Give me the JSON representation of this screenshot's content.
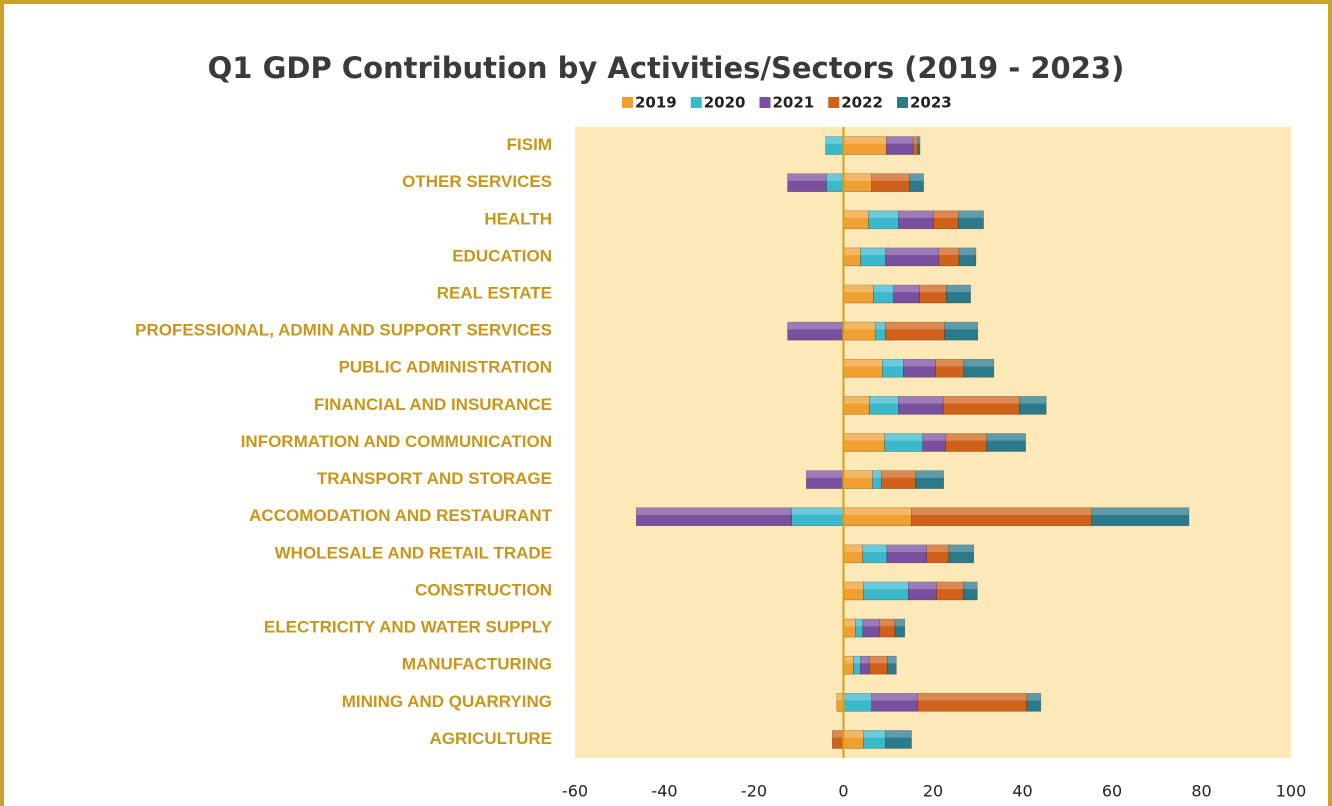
{
  "chart_data": {
    "type": "stacked_bar_horizontal",
    "title": "Q1 GDP Contribution by Activities/Sectors (2019 - 2023)",
    "categories": [
      "FISIM",
      "OTHER SERVICES",
      "HEALTH",
      "EDUCATION",
      "REAL ESTATE",
      "PROFESSIONAL, ADMIN AND SUPPORT SERVICES",
      "PUBLIC ADMINISTRATION",
      "FINANCIAL AND INSURANCE",
      "INFORMATION AND COMMUNICATION",
      "TRANSPORT AND STORAGE",
      "ACCOMODATION AND RESTAURANT",
      "WHOLESALE AND RETAIL TRADE",
      "CONSTRUCTION",
      "ELECTRICITY AND WATER SUPPLY",
      "MANUFACTURING",
      "MINING AND QUARRYING",
      "AGRICULTURE"
    ],
    "series": [
      {
        "name": "2019",
        "color": "#f0a030",
        "values": [
          9.6,
          6.3,
          5.6,
          3.8,
          6.7,
          7.2,
          8.7,
          5.8,
          9.2,
          6.5,
          15.2,
          4.3,
          4.5,
          2.7,
          2.2,
          -1.5,
          4.5
        ]
      },
      {
        "name": "2020",
        "color": "#3ab8cc",
        "values": [
          -4,
          -3.8,
          6.7,
          5.6,
          4.5,
          2.2,
          4.7,
          6.5,
          8.5,
          2,
          -11.6,
          5.4,
          10,
          1.6,
          1.6,
          6.3,
          4.9
        ]
      },
      {
        "name": "2021",
        "color": "#7a4fa0",
        "values": [
          6,
          -8.7,
          7.8,
          11.9,
          5.8,
          -12.5,
          7.2,
          10,
          5.1,
          -8.3,
          -34.7,
          8.9,
          6.3,
          3.8,
          2,
          10.3,
          0
        ]
      },
      {
        "name": "2022",
        "color": "#d0601a",
        "values": [
          1,
          8.5,
          5.6,
          4.5,
          6,
          13.2,
          6.3,
          17,
          9.2,
          7.6,
          40.3,
          4.9,
          6,
          3.4,
          4,
          24.4,
          -2.5
        ]
      },
      {
        "name": "2023",
        "color": "#2a7a8c",
        "values": [
          0.5,
          3.1,
          5.6,
          3.8,
          5.4,
          7.4,
          6.7,
          6,
          8.7,
          6.3,
          21.7,
          5.6,
          3.1,
          2.2,
          2,
          3.1,
          5.8
        ]
      }
    ],
    "xlim": [
      -60,
      100
    ],
    "xticks": [
      -60,
      -40,
      -20,
      0,
      20,
      40,
      60,
      80,
      100
    ]
  }
}
